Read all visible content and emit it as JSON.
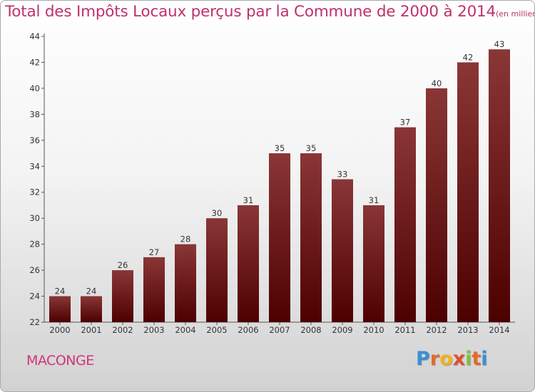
{
  "title": "Total des Impôts Locaux perçus par la Commune de 2000 à 2014",
  "title_unit": "(en milliers d'€)",
  "commune": "MACONGE",
  "brand": [
    "P",
    "r",
    "o",
    "x",
    "i",
    "t",
    "i"
  ],
  "colors": {
    "bar_top": "#8a3636",
    "bar_bottom": "#4d0000",
    "title": "#c0306a",
    "commune": "#d0357a"
  },
  "chart_data": {
    "type": "bar",
    "title": "Total des Impôts Locaux perçus par la Commune de 2000 à 2014",
    "xlabel": "",
    "ylabel": "",
    "categories": [
      "2000",
      "2001",
      "2002",
      "2003",
      "2004",
      "2005",
      "2006",
      "2007",
      "2008",
      "2009",
      "2010",
      "2011",
      "2012",
      "2013",
      "2014"
    ],
    "values": [
      24,
      24,
      26,
      27,
      28,
      30,
      31,
      35,
      35,
      33,
      31,
      37,
      40,
      42,
      43
    ],
    "ylim": [
      22,
      44
    ],
    "yticks": [
      22,
      24,
      26,
      28,
      30,
      32,
      34,
      36,
      38,
      40,
      42,
      44
    ],
    "grid": false,
    "legend": "none"
  }
}
